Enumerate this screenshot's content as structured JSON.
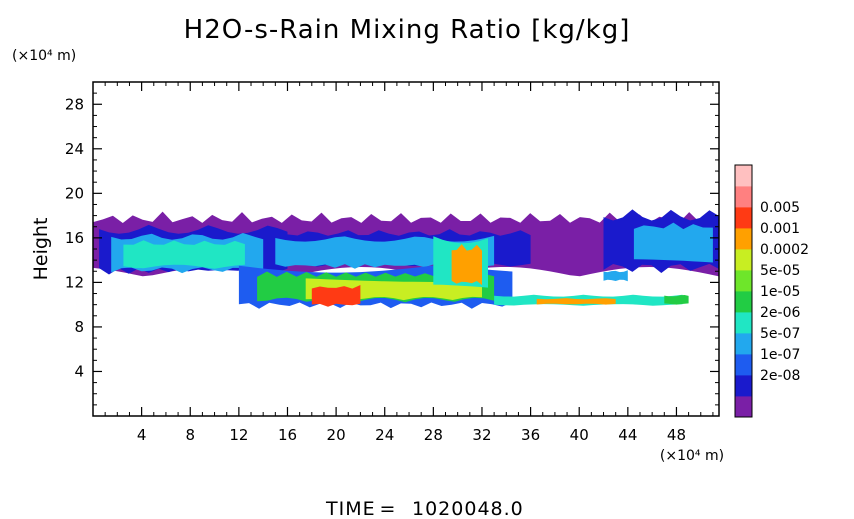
{
  "chart_data": {
    "type": "heatmap",
    "title": "H2O-s-Rain Mixing Ratio [kg/kg]",
    "ylabel": "Height",
    "x_unit": "(×10⁴ m)",
    "y_unit": "(×10⁴ m)",
    "x_ticks": [
      4,
      8,
      12,
      16,
      20,
      24,
      28,
      32,
      36,
      40,
      44,
      48
    ],
    "y_ticks": [
      4,
      8,
      12,
      16,
      20,
      24,
      28
    ],
    "xlim": [
      0,
      51.5
    ],
    "ylim": [
      0,
      30
    ],
    "time_label": "TIME",
    "time_value": "1020048.0",
    "colorbar": {
      "labels": [
        "0.005",
        "0.001",
        "0.0002",
        "5e-05",
        "1e-05",
        "2e-06",
        "5e-07",
        "1e-07",
        "2e-08"
      ],
      "colors": [
        "#7a1fa6",
        "#1a1acc",
        "#1e5cf0",
        "#22a8ee",
        "#20e6c4",
        "#22cc44",
        "#6ee62a",
        "#c8ee22",
        "#ffa000",
        "#ff3a14",
        "#ff8080",
        "#ffc0c0"
      ]
    },
    "regions": [
      {
        "x": [
          0,
          51.5
        ],
        "y": [
          12.5,
          18.4
        ],
        "level": 0
      },
      {
        "x": [
          0.5,
          16
        ],
        "y": [
          12.6,
          17.2
        ],
        "level": 1
      },
      {
        "x": [
          16,
          36
        ],
        "y": [
          13.4,
          16.8
        ],
        "level": 1
      },
      {
        "x": [
          42,
          51.5
        ],
        "y": [
          12.8,
          18.6
        ],
        "level": 1
      },
      {
        "x": [
          1.5,
          14
        ],
        "y": [
          12.8,
          16.5
        ],
        "level": 3
      },
      {
        "x": [
          2.5,
          12.5
        ],
        "y": [
          13.2,
          15.8
        ],
        "level": 4
      },
      {
        "x": [
          15,
          33
        ],
        "y": [
          13.2,
          16.2
        ],
        "level": 3
      },
      {
        "x": [
          44.5,
          51
        ],
        "y": [
          13.5,
          17.5
        ],
        "level": 3
      },
      {
        "x": [
          12,
          34.5
        ],
        "y": [
          9.6,
          13.6
        ],
        "level": 2
      },
      {
        "x": [
          13.5,
          33
        ],
        "y": [
          10.2,
          13.0
        ],
        "level": 5
      },
      {
        "x": [
          17.5,
          32
        ],
        "y": [
          10.4,
          12.4
        ],
        "level": 7
      },
      {
        "x": [
          18,
          22
        ],
        "y": [
          9.8,
          11.8
        ],
        "level": 9
      },
      {
        "x": [
          28,
          32.5
        ],
        "y": [
          11.0,
          16.5
        ],
        "level": 4
      },
      {
        "x": [
          29.5,
          32
        ],
        "y": [
          11.6,
          15.5
        ],
        "level": 8
      },
      {
        "x": [
          33,
          48.5
        ],
        "y": [
          9.9,
          10.9
        ],
        "level": 4
      },
      {
        "x": [
          36.5,
          43
        ],
        "y": [
          10.0,
          10.6
        ],
        "level": 8
      },
      {
        "x": [
          42,
          44
        ],
        "y": [
          12.1,
          13.1
        ],
        "level": 3
      },
      {
        "x": [
          47,
          49
        ],
        "y": [
          10.0,
          10.9
        ],
        "level": 5
      }
    ]
  }
}
